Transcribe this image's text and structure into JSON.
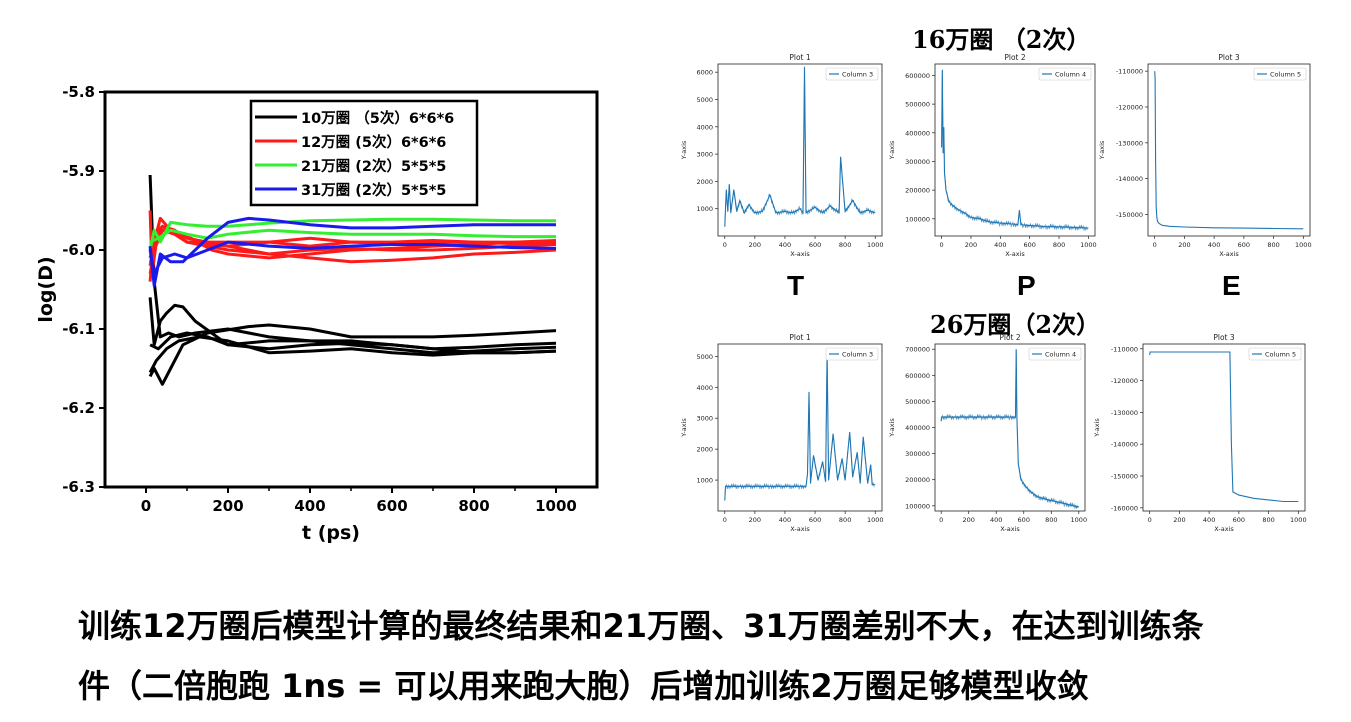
{
  "headings": {
    "top": "16万圈 （2次）",
    "bottom": "26万圈（2次）"
  },
  "letters": {
    "t": "T",
    "p": "P",
    "e": "E"
  },
  "caption": {
    "line1": "训练12万圈后模型计算的最终结果和21万圈、31万圈差别不大，在达到训练条",
    "line2": "件（二倍胞跑 1ns = 可以用来跑大胞）后增加训练2万圈足够模型收敛"
  },
  "chart_data": [
    {
      "id": "main",
      "type": "line",
      "xlabel": "t (ps)",
      "ylabel": "log(D)",
      "xlim": [
        -100,
        1100
      ],
      "ylim": [
        -6.3,
        -5.8
      ],
      "xticks": [
        0,
        200,
        400,
        600,
        800,
        1000
      ],
      "yticks": [
        -5.8,
        -5.9,
        -6.0,
        -6.1,
        -6.2,
        -6.3
      ],
      "ytick_labels": [
        "-5.8",
        "-5.9",
        "-6.0",
        "-6.1",
        "-6.2",
        "-6.3"
      ],
      "legend_position": "top-center",
      "series": [
        {
          "name": "10万圈 （5次）6*6*6",
          "color": "#000000",
          "lines": [
            {
              "x": [
                10,
                20,
                35,
                55,
                80,
                120,
                200,
                300,
                400,
                500,
                600,
                700,
                800,
                900,
                1000
              ],
              "y": [
                -5.905,
                -6.04,
                -6.11,
                -6.105,
                -6.11,
                -6.105,
                -6.1,
                -6.11,
                -6.115,
                -6.12,
                -6.125,
                -6.13,
                -6.128,
                -6.125,
                -6.123
              ]
            },
            {
              "x": [
                10,
                20,
                35,
                50,
                70,
                90,
                120,
                200,
                300,
                400,
                500,
                600,
                700,
                800,
                900,
                1000
              ],
              "y": [
                -6.06,
                -6.12,
                -6.09,
                -6.08,
                -6.07,
                -6.072,
                -6.09,
                -6.12,
                -6.115,
                -6.115,
                -6.115,
                -6.12,
                -6.125,
                -6.13,
                -6.13,
                -6.128
              ]
            },
            {
              "x": [
                10,
                20,
                40,
                60,
                90,
                150,
                250,
                300,
                400,
                500,
                600,
                700,
                800,
                900,
                1000
              ],
              "y": [
                -6.16,
                -6.15,
                -6.17,
                -6.15,
                -6.12,
                -6.105,
                -6.097,
                -6.095,
                -6.1,
                -6.11,
                -6.11,
                -6.11,
                -6.108,
                -6.105,
                -6.102
              ]
            },
            {
              "x": [
                10,
                30,
                60,
                100,
                150,
                200,
                300,
                400,
                500,
                600,
                700,
                800,
                900,
                1000
              ],
              "y": [
                -6.12,
                -6.125,
                -6.11,
                -6.105,
                -6.11,
                -6.12,
                -6.125,
                -6.12,
                -6.118,
                -6.12,
                -6.125,
                -6.123,
                -6.12,
                -6.118
              ]
            },
            {
              "x": [
                10,
                25,
                50,
                80,
                130,
                200,
                300,
                400,
                500,
                600,
                700,
                800,
                900,
                1000
              ],
              "y": [
                -6.155,
                -6.14,
                -6.125,
                -6.115,
                -6.11,
                -6.115,
                -6.13,
                -6.128,
                -6.125,
                -6.13,
                -6.133,
                -6.13,
                -6.13,
                -6.128
              ]
            }
          ]
        },
        {
          "name": "12万圈 (5次）6*6*6",
          "color": "#ff1a1a",
          "lines": [
            {
              "x": [
                10,
                15,
                25,
                40,
                70,
                100,
                200,
                300,
                400,
                500,
                600,
                700,
                800,
                900,
                1000
              ],
              "y": [
                -5.95,
                -6.03,
                -5.99,
                -5.975,
                -5.98,
                -5.99,
                -6.0,
                -6.005,
                -6.0,
                -5.998,
                -6.0,
                -6.0,
                -5.998,
                -5.995,
                -5.993
              ]
            },
            {
              "x": [
                10,
                20,
                35,
                60,
                100,
                150,
                200,
                300,
                400,
                500,
                600,
                700,
                800,
                900,
                1000
              ],
              "y": [
                -6.01,
                -5.99,
                -5.96,
                -5.975,
                -5.99,
                -5.99,
                -5.995,
                -5.99,
                -5.985,
                -5.99,
                -5.992,
                -5.99,
                -5.99,
                -5.992,
                -5.99
              ]
            },
            {
              "x": [
                10,
                20,
                40,
                70,
                100,
                200,
                300,
                400,
                500,
                600,
                700,
                800,
                900,
                1000
              ],
              "y": [
                -6.02,
                -5.985,
                -5.97,
                -5.98,
                -5.99,
                -5.995,
                -6.005,
                -6.01,
                -6.015,
                -6.013,
                -6.01,
                -6.005,
                -6.003,
                -6.0
              ]
            },
            {
              "x": [
                10,
                20,
                40,
                70,
                110,
                160,
                200,
                300,
                400,
                500,
                600,
                700,
                800,
                900,
                1000
              ],
              "y": [
                -6.03,
                -6.0,
                -5.975,
                -5.98,
                -5.985,
                -6.0,
                -6.005,
                -6.01,
                -6.005,
                -6.0,
                -5.998,
                -5.995,
                -5.993,
                -5.99,
                -5.99
              ]
            },
            {
              "x": [
                10,
                20,
                40,
                70,
                100,
                150,
                200,
                300,
                400,
                500,
                600,
                700,
                800,
                900,
                1000
              ],
              "y": [
                -6.04,
                -5.98,
                -5.97,
                -5.975,
                -5.985,
                -5.99,
                -5.99,
                -5.99,
                -5.995,
                -5.99,
                -5.99,
                -5.988,
                -5.99,
                -5.99,
                -5.988
              ]
            }
          ]
        },
        {
          "name": "21万圈 (2次）5*5*5",
          "color": "#33ee33",
          "lines": [
            {
              "x": [
                10,
                20,
                35,
                60,
                100,
                150,
                200,
                300,
                400,
                500,
                600,
                700,
                800,
                900,
                1000
              ],
              "y": [
                -6.0,
                -5.975,
                -5.99,
                -5.965,
                -5.968,
                -5.97,
                -5.97,
                -5.966,
                -5.963,
                -5.962,
                -5.961,
                -5.961,
                -5.962,
                -5.963,
                -5.963
              ]
            },
            {
              "x": [
                10,
                30,
                60,
                100,
                150,
                200,
                300,
                400,
                500,
                600,
                700,
                800,
                900,
                1000
              ],
              "y": [
                -5.99,
                -5.985,
                -5.975,
                -5.98,
                -5.985,
                -5.98,
                -5.975,
                -5.978,
                -5.98,
                -5.98,
                -5.98,
                -5.982,
                -5.983,
                -5.983
              ]
            }
          ]
        },
        {
          "name": "31万圈 (2次）5*5*5",
          "color": "#1a1aee",
          "lines": [
            {
              "x": [
                10,
                20,
                35,
                60,
                90,
                120,
                150,
                200,
                250,
                300,
                400,
                500,
                600,
                700,
                800,
                900,
                1000
              ],
              "y": [
                -5.995,
                -6.045,
                -6.005,
                -6.015,
                -6.015,
                -6.0,
                -5.985,
                -5.965,
                -5.96,
                -5.962,
                -5.968,
                -5.972,
                -5.972,
                -5.97,
                -5.968,
                -5.968,
                -5.968
              ]
            },
            {
              "x": [
                10,
                20,
                40,
                70,
                100,
                150,
                200,
                300,
                400,
                500,
                600,
                700,
                800,
                900,
                1000
              ],
              "y": [
                -6.0,
                -6.03,
                -6.01,
                -6.005,
                -6.01,
                -6.0,
                -5.99,
                -5.995,
                -5.998,
                -5.995,
                -5.993,
                -5.993,
                -5.995,
                -5.997,
                -5.998
              ]
            }
          ]
        }
      ]
    },
    {
      "id": "t16",
      "type": "line",
      "title": "Plot 1",
      "legend": "Column 3",
      "xlabel": "X-axis",
      "ylabel": "Y-axis",
      "xlim": [
        0,
        1000
      ],
      "ylim": [
        0,
        6300
      ],
      "xticks": [
        0,
        200,
        400,
        600,
        800,
        1000
      ],
      "yticks": [
        1000,
        2000,
        3000,
        4000,
        5000,
        6000
      ],
      "x": [
        0,
        10,
        20,
        30,
        40,
        60,
        80,
        100,
        130,
        160,
        200,
        250,
        300,
        340,
        400,
        450,
        500,
        520,
        530,
        540,
        600,
        650,
        700,
        760,
        770,
        800,
        850,
        900,
        950,
        1000
      ],
      "y": [
        350,
        1700,
        900,
        1900,
        850,
        1700,
        900,
        1300,
        850,
        1150,
        850,
        900,
        1500,
        850,
        900,
        850,
        1000,
        850,
        6200,
        850,
        1050,
        850,
        1100,
        850,
        2900,
        900,
        1300,
        850,
        950,
        850
      ]
    },
    {
      "id": "p16",
      "type": "line",
      "title": "Plot 2",
      "legend": "Column 4",
      "xlabel": "X-axis",
      "ylabel": "Y-axis",
      "xlim": [
        0,
        1000
      ],
      "ylim": [
        40000,
        640000
      ],
      "xticks": [
        0,
        200,
        400,
        600,
        800,
        1000
      ],
      "yticks": [
        100000,
        200000,
        300000,
        400000,
        500000,
        600000
      ],
      "x": [
        0,
        5,
        10,
        15,
        20,
        30,
        50,
        80,
        120,
        160,
        200,
        260,
        320,
        400,
        480,
        520,
        530,
        540,
        560,
        600,
        700,
        800,
        900,
        1000
      ],
      "y": [
        350000,
        620000,
        330000,
        420000,
        260000,
        200000,
        160000,
        145000,
        130000,
        120000,
        105000,
        100000,
        90000,
        85000,
        82000,
        80000,
        130000,
        80000,
        78000,
        77000,
        73000,
        72000,
        70000,
        68000
      ]
    },
    {
      "id": "e16",
      "type": "line",
      "title": "Plot 3",
      "legend": "Column 5",
      "xlabel": "X-axis",
      "ylabel": "Y-axis",
      "xlim": [
        0,
        1000
      ],
      "ylim": [
        -156000,
        -108000
      ],
      "xticks": [
        0,
        200,
        400,
        600,
        800,
        1000
      ],
      "yticks": [
        -110000,
        -120000,
        -130000,
        -140000,
        -150000
      ],
      "x": [
        0,
        3,
        6,
        10,
        15,
        20,
        30,
        50,
        100,
        200,
        400,
        600,
        800,
        1000
      ],
      "y": [
        -110000,
        -112000,
        -135000,
        -148000,
        -151000,
        -152000,
        -152500,
        -153000,
        -153300,
        -153500,
        -153700,
        -153800,
        -153900,
        -154000
      ]
    },
    {
      "id": "t26",
      "type": "line",
      "title": "Plot 1",
      "legend": "Column 3",
      "xlabel": "X-axis",
      "ylabel": "Y-axis",
      "xlim": [
        0,
        1000
      ],
      "ylim": [
        0,
        5400
      ],
      "xticks": [
        0,
        200,
        400,
        600,
        800,
        1000
      ],
      "yticks": [
        1000,
        2000,
        3000,
        4000,
        5000
      ],
      "x": [
        0,
        5,
        100,
        300,
        500,
        540,
        550,
        560,
        570,
        590,
        620,
        650,
        670,
        680,
        690,
        720,
        750,
        780,
        800,
        830,
        850,
        880,
        900,
        920,
        950,
        970,
        980,
        1000
      ],
      "y": [
        350,
        800,
        800,
        800,
        800,
        800,
        1200,
        3850,
        900,
        1800,
        1000,
        1600,
        950,
        5150,
        1000,
        2500,
        1000,
        1700,
        1000,
        2550,
        1100,
        1900,
        900,
        2400,
        900,
        1500,
        850,
        850
      ]
    },
    {
      "id": "p26",
      "type": "line",
      "title": "Plot 2",
      "legend": "Column 4",
      "xlabel": "X-axis",
      "ylabel": "Y-axis",
      "xlim": [
        0,
        1000
      ],
      "ylim": [
        80000,
        720000
      ],
      "xticks": [
        0,
        200,
        400,
        600,
        800,
        1000
      ],
      "yticks": [
        100000,
        200000,
        300000,
        400000,
        500000,
        600000,
        700000
      ],
      "x": [
        0,
        3,
        100,
        300,
        500,
        540,
        545,
        550,
        560,
        580,
        620,
        660,
        700,
        760,
        820,
        900,
        960,
        1000
      ],
      "y": [
        425000,
        440000,
        440000,
        440000,
        440000,
        440000,
        700000,
        440000,
        260000,
        200000,
        170000,
        150000,
        135000,
        125000,
        118000,
        108000,
        100000,
        96000
      ]
    },
    {
      "id": "e26",
      "type": "line",
      "title": "Plot 3",
      "legend": "Column 5",
      "xlabel": "X-axis",
      "ylabel": "Y-axis",
      "xlim": [
        0,
        1000
      ],
      "ylim": [
        -161000,
        -108500
      ],
      "xticks": [
        0,
        200,
        400,
        600,
        800,
        1000
      ],
      "yticks": [
        -110000,
        -120000,
        -130000,
        -140000,
        -150000,
        -160000
      ],
      "x": [
        0,
        3,
        100,
        300,
        500,
        540,
        550,
        560,
        600,
        700,
        800,
        900,
        1000
      ],
      "y": [
        -112000,
        -111000,
        -111000,
        -111000,
        -111000,
        -111000,
        -140000,
        -155000,
        -156000,
        -157000,
        -157500,
        -158000,
        -158000
      ]
    }
  ]
}
